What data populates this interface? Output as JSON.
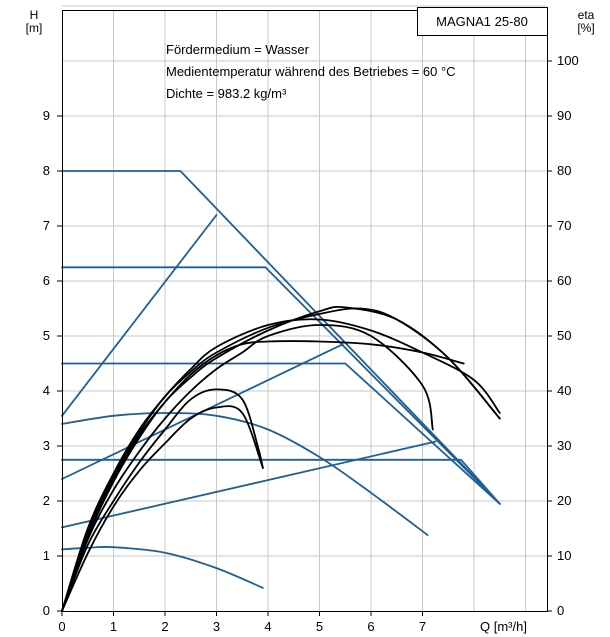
{
  "chart_data": {
    "type": "line",
    "title": "MAGNA1 25-80",
    "annotations": [
      "Fördermedium = Wasser",
      "Medientemperatur während des Betriebes = 60 °C",
      "Dichte = 983.2 kg/m³"
    ],
    "x_axis": {
      "label": "Q [m³/h]",
      "range": [
        0,
        9.4
      ],
      "ticks": [
        "0",
        "1",
        "2",
        "3",
        "4",
        "5",
        "6",
        "7"
      ],
      "grid": true
    },
    "y_left": {
      "label_line1": "H",
      "label_line2": "[m]",
      "range": [
        0,
        11.1
      ],
      "ticks": [
        "0",
        "1",
        "2",
        "3",
        "4",
        "5",
        "6",
        "7",
        "8",
        "9"
      ],
      "grid": true
    },
    "y_right": {
      "label_line1": "eta",
      "label_line2": "[%]",
      "range": [
        0,
        111
      ],
      "ticks": [
        "0",
        "10",
        "20",
        "30",
        "40",
        "50",
        "60",
        "70",
        "80",
        "90",
        "100"
      ]
    },
    "colors": {
      "head_curves": "#1f5f96",
      "efficiency_curves": "#000000",
      "grid": "#c8c8c8"
    },
    "series": [
      {
        "group": "head",
        "points": [
          [
            0,
            8
          ],
          [
            2.3,
            8
          ],
          [
            8.5,
            1.95
          ]
        ]
      },
      {
        "group": "head",
        "points": [
          [
            0,
            6.25
          ],
          [
            3.95,
            6.25
          ],
          [
            8.5,
            1.95
          ]
        ]
      },
      {
        "group": "head",
        "points": [
          [
            0,
            4.5
          ],
          [
            5.5,
            4.5
          ],
          [
            8.5,
            1.95
          ]
        ]
      },
      {
        "group": "head",
        "points": [
          [
            0,
            2.75
          ],
          [
            7.75,
            2.75
          ],
          [
            8.5,
            1.95
          ]
        ]
      },
      {
        "group": "head",
        "points": [
          [
            0,
            3.55
          ],
          [
            3.0,
            7.2
          ]
        ]
      },
      {
        "group": "head",
        "points": [
          [
            0,
            2.4
          ],
          [
            5.45,
            4.85
          ]
        ]
      },
      {
        "group": "head",
        "points": [
          [
            0,
            1.52
          ],
          [
            7.25,
            3.08
          ]
        ]
      },
      {
        "group": "head",
        "points": [
          [
            0,
            3.4
          ],
          [
            1.0,
            3.55
          ],
          [
            2.0,
            3.6
          ],
          [
            3.0,
            3.55
          ],
          [
            4.0,
            3.3
          ],
          [
            5.0,
            2.8
          ],
          [
            6.0,
            2.15
          ],
          [
            7.1,
            1.38
          ]
        ]
      },
      {
        "group": "head",
        "points": [
          [
            0,
            1.12
          ],
          [
            0.5,
            1.15
          ],
          [
            1.0,
            1.16
          ],
          [
            2.0,
            1.06
          ],
          [
            3.0,
            0.78
          ],
          [
            3.9,
            0.42
          ]
        ]
      },
      {
        "group": "efficiency",
        "points": [
          [
            0,
            0
          ],
          [
            0.5,
            10.5
          ],
          [
            1.0,
            19
          ],
          [
            1.5,
            25.5
          ],
          [
            2.0,
            30.5
          ],
          [
            2.5,
            35
          ],
          [
            3.0,
            37
          ],
          [
            3.5,
            36
          ],
          [
            3.9,
            26
          ]
        ]
      },
      {
        "group": "efficiency",
        "points": [
          [
            0,
            0
          ],
          [
            0.5,
            12
          ],
          [
            1.0,
            20
          ],
          [
            1.5,
            27
          ],
          [
            2.0,
            33
          ],
          [
            2.5,
            38.5
          ],
          [
            3.0,
            40.3
          ],
          [
            3.5,
            38.5
          ],
          [
            3.8,
            30
          ],
          [
            3.9,
            26
          ]
        ]
      },
      {
        "group": "efficiency",
        "points": [
          [
            0,
            0
          ],
          [
            0.5,
            13
          ],
          [
            1.0,
            22
          ],
          [
            1.5,
            29
          ],
          [
            2.0,
            35
          ],
          [
            2.5,
            40
          ],
          [
            3.0,
            44
          ],
          [
            3.5,
            47
          ],
          [
            4.0,
            50
          ],
          [
            5.0,
            52
          ],
          [
            6.0,
            50
          ],
          [
            7.0,
            41
          ],
          [
            7.2,
            33
          ]
        ]
      },
      {
        "group": "efficiency",
        "points": [
          [
            0,
            0
          ],
          [
            0.5,
            14
          ],
          [
            1.0,
            24
          ],
          [
            1.5,
            32
          ],
          [
            2.0,
            38
          ],
          [
            2.5,
            43
          ],
          [
            3.0,
            46.5
          ],
          [
            3.5,
            48.5
          ],
          [
            4.0,
            49
          ],
          [
            5.0,
            49
          ],
          [
            6.0,
            48.5
          ],
          [
            7.0,
            47
          ],
          [
            7.8,
            45
          ]
        ]
      },
      {
        "group": "efficiency",
        "points": [
          [
            0,
            0
          ],
          [
            0.5,
            15
          ],
          [
            1.0,
            25
          ],
          [
            1.5,
            33
          ],
          [
            2.0,
            39
          ],
          [
            2.5,
            44
          ],
          [
            3.0,
            48
          ],
          [
            4.0,
            52
          ],
          [
            5.0,
            53
          ],
          [
            6.0,
            51
          ],
          [
            7.0,
            47
          ],
          [
            8.0,
            42
          ],
          [
            8.5,
            36
          ]
        ]
      },
      {
        "group": "efficiency",
        "points": [
          [
            0,
            0
          ],
          [
            0.5,
            14.5
          ],
          [
            1.0,
            24.5
          ],
          [
            1.5,
            32.5
          ],
          [
            2.0,
            39
          ],
          [
            2.5,
            43.5
          ],
          [
            3.0,
            47
          ],
          [
            4.0,
            51.5
          ],
          [
            5.0,
            54
          ],
          [
            5.8,
            55
          ],
          [
            6.5,
            53
          ],
          [
            7.5,
            46
          ],
          [
            8.5,
            35
          ]
        ]
      },
      {
        "group": "efficiency",
        "points": [
          [
            0,
            0
          ],
          [
            0.5,
            13.5
          ],
          [
            1.0,
            23.5
          ],
          [
            1.5,
            31.5
          ],
          [
            2.0,
            38
          ],
          [
            2.5,
            42.5
          ],
          [
            3.0,
            46
          ],
          [
            4.0,
            51
          ],
          [
            5.0,
            54.5
          ],
          [
            5.5,
            55.2
          ],
          [
            6.5,
            53
          ],
          [
            7.5,
            46
          ],
          [
            8.5,
            35
          ]
        ]
      }
    ]
  }
}
